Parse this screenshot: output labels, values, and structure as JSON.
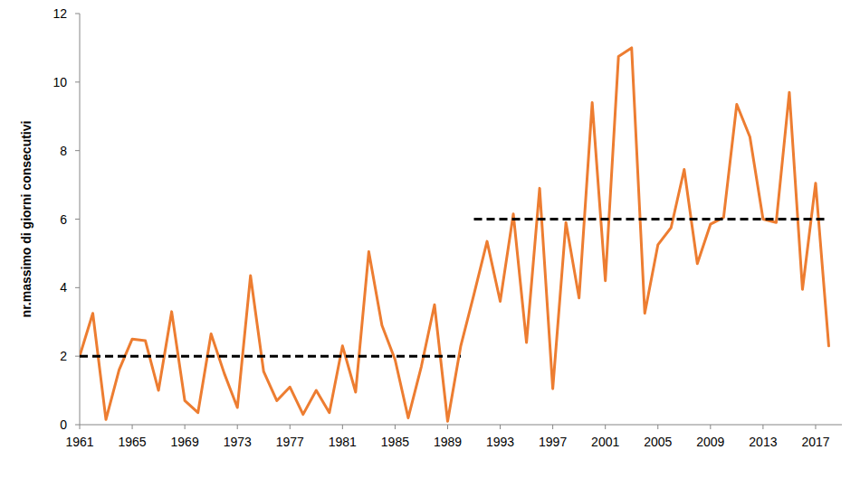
{
  "chart_data": {
    "type": "line",
    "y_label": "nr.massimo di giorni consecutivi",
    "x": [
      1961,
      1962,
      1963,
      1964,
      1965,
      1966,
      1967,
      1968,
      1969,
      1970,
      1971,
      1972,
      1973,
      1974,
      1975,
      1976,
      1977,
      1978,
      1979,
      1980,
      1981,
      1982,
      1983,
      1984,
      1985,
      1986,
      1987,
      1988,
      1989,
      1990,
      1991,
      1992,
      1993,
      1994,
      1995,
      1996,
      1997,
      1998,
      1999,
      2000,
      2001,
      2002,
      2003,
      2004,
      2005,
      2006,
      2007,
      2008,
      2009,
      2010,
      2011,
      2012,
      2013,
      2014,
      2015,
      2016,
      2017,
      2018
    ],
    "series": [
      {
        "color": "#ed7d31",
        "line_style": "solid",
        "values": [
          2.0,
          3.25,
          0.15,
          1.6,
          2.5,
          2.45,
          1.0,
          3.3,
          0.7,
          0.35,
          2.65,
          1.5,
          0.5,
          4.35,
          1.55,
          0.7,
          1.1,
          0.3,
          1.0,
          0.35,
          2.3,
          0.95,
          5.05,
          2.9,
          1.9,
          0.2,
          1.7,
          3.5,
          0.1,
          2.3,
          3.8,
          5.35,
          3.6,
          6.15,
          2.4,
          6.9,
          1.05,
          5.9,
          3.7,
          9.4,
          4.2,
          10.75,
          11.0,
          3.25,
          5.25,
          5.75,
          7.45,
          4.7,
          5.85,
          6.05,
          9.35,
          8.4,
          6.0,
          5.9,
          9.7,
          3.95,
          7.05,
          2.3
        ]
      },
      {
        "color": "#000000",
        "line_style": "dashed",
        "x": [
          1961,
          1990
        ],
        "values": [
          2,
          2
        ]
      },
      {
        "color": "#000000",
        "line_style": "dashed",
        "x": [
          1991,
          2018
        ],
        "values": [
          6,
          6
        ]
      }
    ],
    "xlim": [
      1961,
      2019
    ],
    "xticks": [
      1961,
      1965,
      1969,
      1973,
      1977,
      1981,
      1985,
      1989,
      1993,
      1997,
      2001,
      2005,
      2009,
      2013,
      2017
    ],
    "ylim": [
      0,
      12
    ],
    "yticks": [
      0,
      2,
      4,
      6,
      8,
      10,
      12
    ],
    "grid": false
  }
}
